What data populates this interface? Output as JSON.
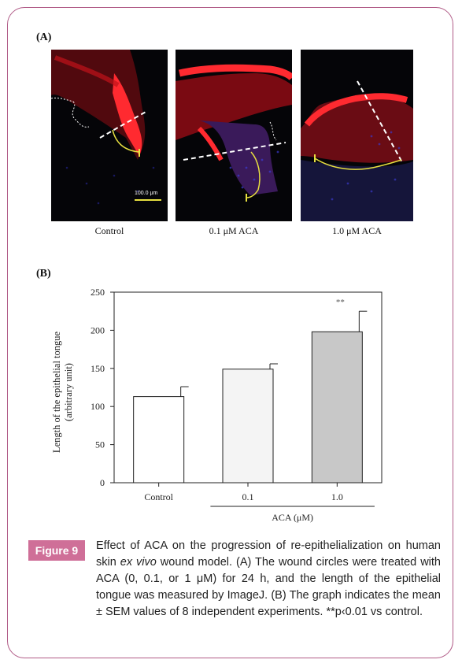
{
  "panel_a": {
    "label": "(A)",
    "images": [
      {
        "caption": "Control",
        "scale_bar": "100.0 μm"
      },
      {
        "caption": "0.1 μM ACA"
      },
      {
        "caption": "1.0 μM ACA"
      }
    ]
  },
  "chart_data": {
    "type": "bar",
    "panel_label": "(B)",
    "categories": [
      "Control",
      "0.1",
      "1.0"
    ],
    "values": [
      113,
      149,
      198
    ],
    "errors": [
      13,
      7,
      27
    ],
    "colors": [
      "#ffffff",
      "#f4f4f4",
      "#c8c8c8"
    ],
    "significance": [
      "",
      "",
      "**"
    ],
    "ylabel_line1": "Length of the epithelial tongue",
    "ylabel_line2": "(arbitrary unit)",
    "xgroup_label": "ACA (μM)",
    "ylim": [
      0,
      250
    ],
    "yticks": [
      0,
      50,
      100,
      150,
      200,
      250
    ],
    "grid": false
  },
  "caption": {
    "badge": "Figure 9",
    "part1": "Effect of ACA on the progression of re-epithelialization on human skin ",
    "italic": "ex vivo",
    "part2": " wound model. (A) The wound circles were treated with ACA (0, 0.1, or 1 μM) for 24 h, and the length of the epithelial tongue was measured by ImageJ. (B) The graph indicates the mean ± SEM values of 8 independent experiments. **p‹0.01 vs control."
  }
}
